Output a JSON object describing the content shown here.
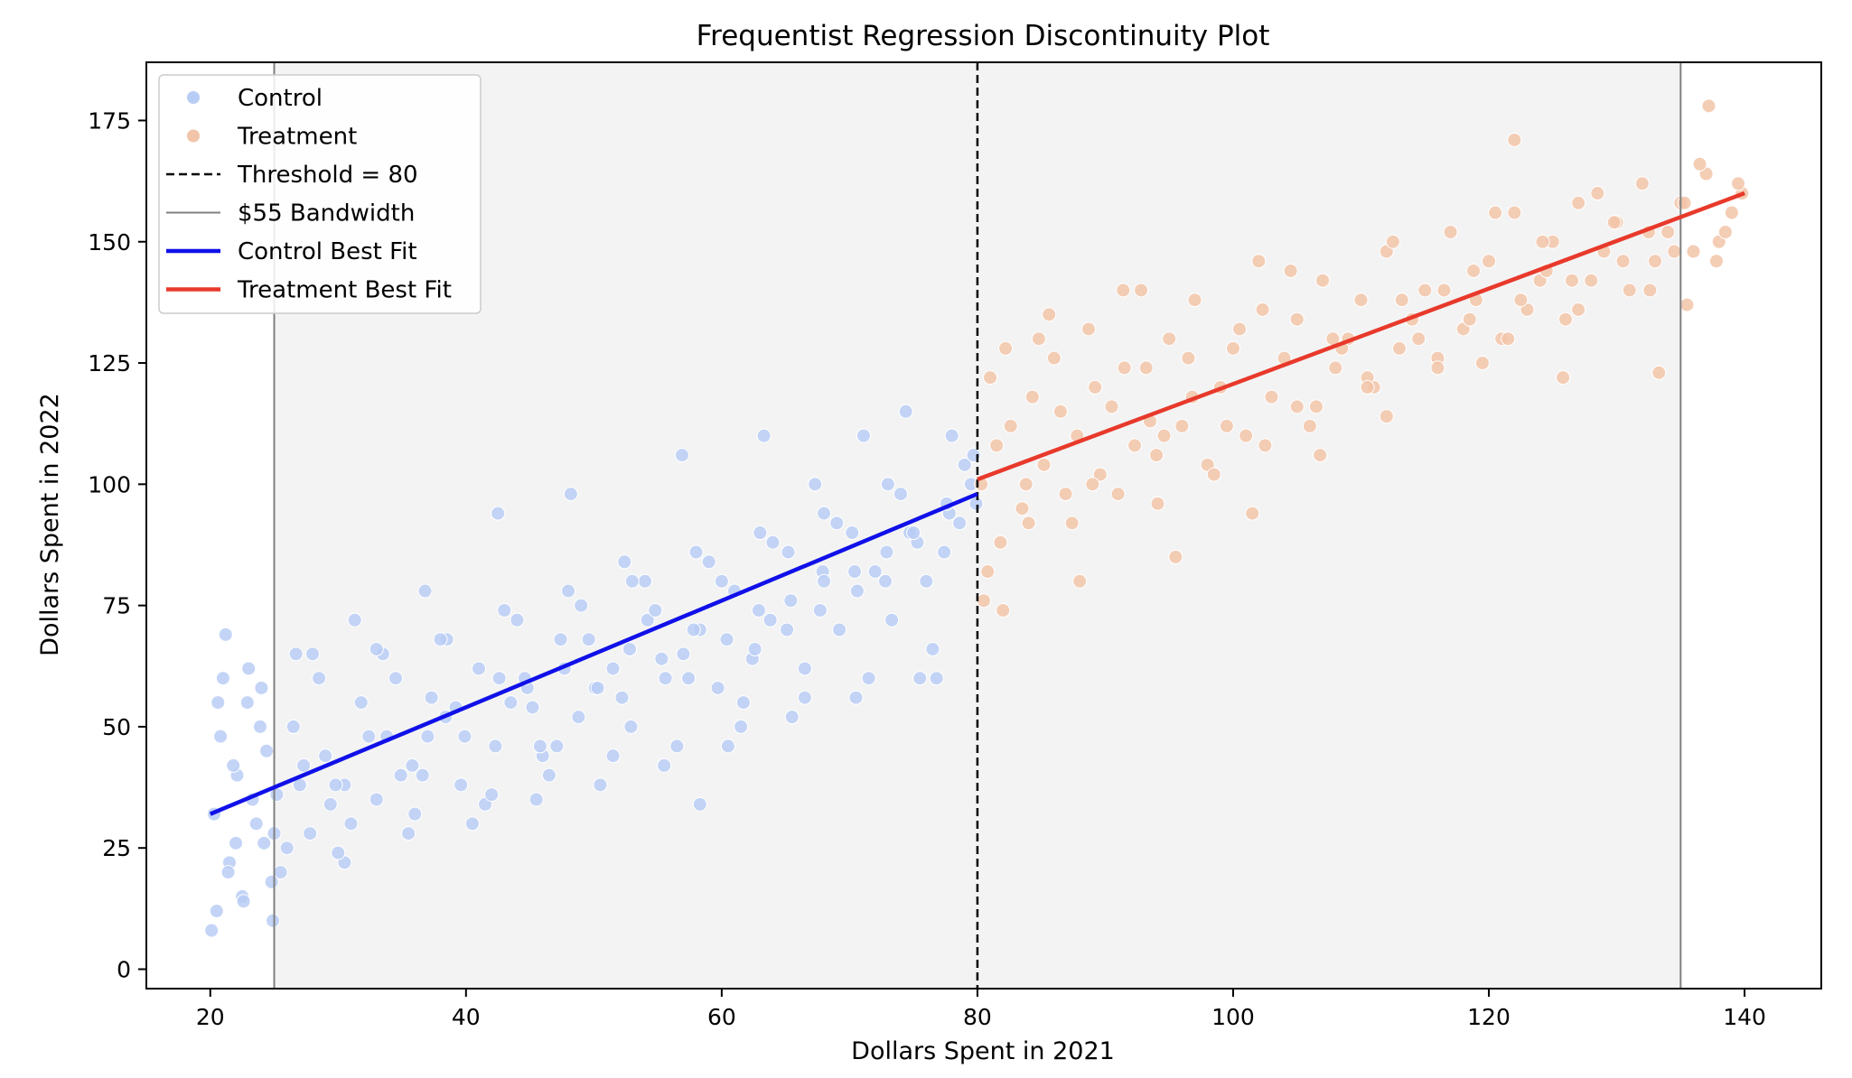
{
  "chart_data": {
    "type": "scatter",
    "title": "Frequentist Regression Discontinuity Plot",
    "xlabel": "Dollars Spent in 2021",
    "ylabel": "Dollars Spent in 2022",
    "xlim": [
      15,
      146
    ],
    "ylim": [
      -4,
      187
    ],
    "xticks": [
      20,
      40,
      60,
      80,
      100,
      120,
      140
    ],
    "yticks": [
      0,
      25,
      50,
      75,
      100,
      125,
      150,
      175
    ],
    "grid": false,
    "legend_position": "upper-left",
    "threshold": 80,
    "bandwidth": 55,
    "bandwidth_range": [
      25,
      135
    ],
    "colors": {
      "control": "#b8cdf5",
      "treatment": "#f2c4a8",
      "control_fit": "#1010e8",
      "treatment_fit": "#e8392b",
      "shade": "#f3f3f3",
      "threshold_line": "#000000",
      "bandwidth_line": "#808080"
    },
    "legend": [
      {
        "label": "Control",
        "kind": "marker",
        "color": "#b8cdf5"
      },
      {
        "label": "Treatment",
        "kind": "marker",
        "color": "#f2c4a8"
      },
      {
        "label": "Threshold = 80",
        "kind": "dashed",
        "color": "#000000"
      },
      {
        "label": "$55 Bandwidth",
        "kind": "thin",
        "color": "#808080"
      },
      {
        "label": "Control Best Fit",
        "kind": "line",
        "color": "#1010e8"
      },
      {
        "label": "Treatment Best Fit",
        "kind": "line",
        "color": "#e8392b"
      }
    ],
    "series": [
      {
        "name": "Control",
        "x": [
          20.3,
          20.8,
          21.5,
          22.1,
          22.9,
          23.6,
          24.4,
          25.2,
          26.5,
          27.8,
          29.0,
          30.5,
          31.8,
          33.0,
          34.5,
          35.8,
          37.0,
          38.4,
          39.6,
          41.0,
          42.3,
          43.5,
          44.8,
          46.0,
          47.4,
          48.8,
          50.1,
          51.5,
          52.9,
          54.2,
          55.6,
          57.0,
          58.3,
          59.7,
          61.0,
          62.4,
          63.8,
          65.1,
          66.5,
          67.9,
          69.2,
          70.6,
          72.0,
          73.3,
          74.7,
          76.0,
          77.4,
          78.6,
          79.5,
          21.0,
          22.5,
          24.0,
          26.0,
          28.5,
          31.0,
          33.5,
          36.0,
          38.5,
          41.5,
          44.0,
          46.5,
          49.0,
          51.5,
          54.0,
          56.5,
          59.0,
          61.5,
          64.0,
          66.5,
          69.0,
          71.5,
          74.0,
          76.5,
          79.0,
          20.5,
          23.0,
          25.5,
          28.0,
          30.5,
          33.0,
          35.5,
          38.0,
          40.5,
          43.0,
          45.5,
          48.0,
          50.5,
          53.0,
          55.5,
          58.0,
          60.5,
          63.0,
          65.5,
          68.0,
          70.5,
          73.0,
          75.5,
          78.0,
          20.1,
          21.8,
          23.3,
          25.0,
          27.3,
          29.8,
          32.4,
          34.9,
          37.3,
          39.9,
          42.6,
          45.2,
          47.7,
          50.3,
          52.8,
          55.3,
          57.8,
          60.4,
          62.9,
          65.4,
          68.0,
          70.4,
          72.9,
          75.3,
          77.8,
          79.9,
          22.0,
          24.8,
          27.0,
          30.0,
          33.8,
          36.6,
          39.2,
          42.0,
          44.6,
          47.1,
          49.6,
          52.2,
          54.8,
          57.4,
          60.0,
          62.6,
          65.2,
          67.7,
          70.2,
          72.8,
          75.0,
          77.6,
          79.7,
          20.6,
          21.4,
          22.6,
          23.9,
          24.9,
          58.3,
          21.2,
          26.7,
          24.2,
          42.5,
          31.3,
          48.2,
          56.9,
          63.3,
          71.1,
          74.4,
          36.8,
          52.4,
          67.3,
          29.4,
          45.8,
          61.7,
          76.8
        ],
        "y": [
          32,
          48,
          22,
          40,
          55,
          30,
          45,
          36,
          50,
          28,
          44,
          38,
          55,
          35,
          60,
          42,
          48,
          52,
          38,
          62,
          46,
          55,
          58,
          44,
          68,
          52,
          58,
          62,
          50,
          72,
          60,
          65,
          70,
          58,
          78,
          64,
          72,
          70,
          62,
          82,
          70,
          78,
          82,
          72,
          90,
          80,
          86,
          92,
          100,
          60,
          15,
          58,
          25,
          60,
          30,
          65,
          32,
          68,
          34,
          72,
          40,
          75,
          44,
          80,
          46,
          84,
          50,
          88,
          56,
          92,
          60,
          98,
          66,
          104,
          12,
          62,
          20,
          65,
          22,
          66,
          28,
          68,
          30,
          74,
          35,
          78,
          38,
          80,
          42,
          86,
          46,
          90,
          52,
          94,
          56,
          100,
          60,
          110,
          8,
          42,
          35,
          28,
          42,
          38,
          48,
          40,
          56,
          48,
          60,
          54,
          62,
          58,
          66,
          64,
          70,
          68,
          74,
          76,
          80,
          82,
          86,
          88,
          94,
          96,
          26,
          18,
          38,
          24,
          48,
          40,
          54,
          36,
          60,
          46,
          68,
          56,
          74,
          60,
          80,
          66,
          86,
          74,
          90,
          80,
          90,
          96,
          106,
          55,
          20,
          14,
          50,
          10,
          34,
          69,
          65,
          26,
          94,
          72,
          98,
          106,
          110,
          110,
          115,
          78,
          84,
          100,
          34,
          46,
          55,
          60
        ],
        "sizes": []
      },
      {
        "name": "Treatment",
        "x": [
          80.3,
          81.0,
          81.8,
          82.6,
          83.5,
          84.3,
          85.2,
          86.0,
          86.9,
          87.8,
          88.7,
          89.6,
          90.5,
          91.4,
          92.3,
          93.2,
          94.1,
          95.0,
          96.0,
          97.0,
          98.0,
          99.0,
          100.0,
          101.0,
          102.0,
          103.0,
          104.0,
          105.0,
          106.0,
          107.0,
          108.0,
          109.0,
          110.0,
          111.0,
          112.0,
          113.0,
          114.0,
          115.0,
          116.0,
          117.0,
          118.0,
          119.0,
          120.0,
          121.0,
          122.0,
          123.0,
          124.0,
          125.0,
          126.0,
          127.0,
          128.0,
          129.0,
          130.0,
          131.0,
          132.0,
          133.0,
          134.0,
          135.0,
          136.0,
          137.0,
          138.0,
          139.0,
          139.8,
          80.8,
          82.2,
          83.8,
          85.6,
          87.4,
          89.2,
          91.0,
          92.8,
          94.6,
          96.5,
          98.5,
          100.5,
          102.5,
          104.5,
          106.5,
          108.5,
          110.5,
          112.5,
          114.5,
          116.5,
          118.5,
          120.5,
          122.5,
          124.5,
          126.5,
          128.5,
          130.5,
          132.5,
          134.5,
          136.5,
          138.5,
          81.5,
          84.0,
          86.5,
          89.0,
          91.5,
          94.0,
          96.8,
          99.5,
          102.3,
          105.0,
          107.8,
          110.5,
          113.2,
          116.0,
          118.8,
          121.5,
          124.2,
          127.0,
          129.8,
          132.6,
          135.3,
          137.8,
          139.5,
          82.0,
          88.0,
          95.5,
          101.5,
          106.8,
          112.0,
          119.5,
          122.0,
          125.8,
          133.3,
          135.5,
          137.2,
          80.5,
          84.8,
          93.5
        ],
        "y": [
          100,
          122,
          88,
          112,
          95,
          118,
          104,
          126,
          98,
          110,
          132,
          102,
          116,
          140,
          108,
          124,
          96,
          130,
          112,
          138,
          104,
          120,
          128,
          110,
          146,
          118,
          126,
          134,
          112,
          142,
          124,
          130,
          138,
          120,
          148,
          128,
          134,
          140,
          126,
          152,
          132,
          138,
          146,
          130,
          156,
          136,
          142,
          150,
          134,
          158,
          142,
          148,
          154,
          140,
          162,
          146,
          152,
          158,
          148,
          164,
          150,
          156,
          160,
          82,
          128,
          100,
          135,
          92,
          120,
          98,
          140,
          110,
          126,
          102,
          132,
          108,
          144,
          116,
          128,
          122,
          150,
          130,
          140,
          134,
          156,
          138,
          144,
          142,
          160,
          146,
          152,
          148,
          166,
          152,
          108,
          92,
          115,
          100,
          124,
          106,
          118,
          112,
          136,
          116,
          130,
          120,
          138,
          124,
          144,
          130,
          150,
          136,
          154,
          140,
          158,
          146,
          162,
          74,
          80,
          85,
          94,
          106,
          114,
          125,
          171,
          122,
          123,
          137,
          178,
          76,
          130,
          113
        ]
      }
    ],
    "fits": [
      {
        "name": "Control Best Fit",
        "x": [
          20,
          80
        ],
        "y": [
          32,
          98
        ]
      },
      {
        "name": "Treatment Best Fit",
        "x": [
          80,
          140
        ],
        "y": [
          101,
          160
        ]
      }
    ]
  }
}
